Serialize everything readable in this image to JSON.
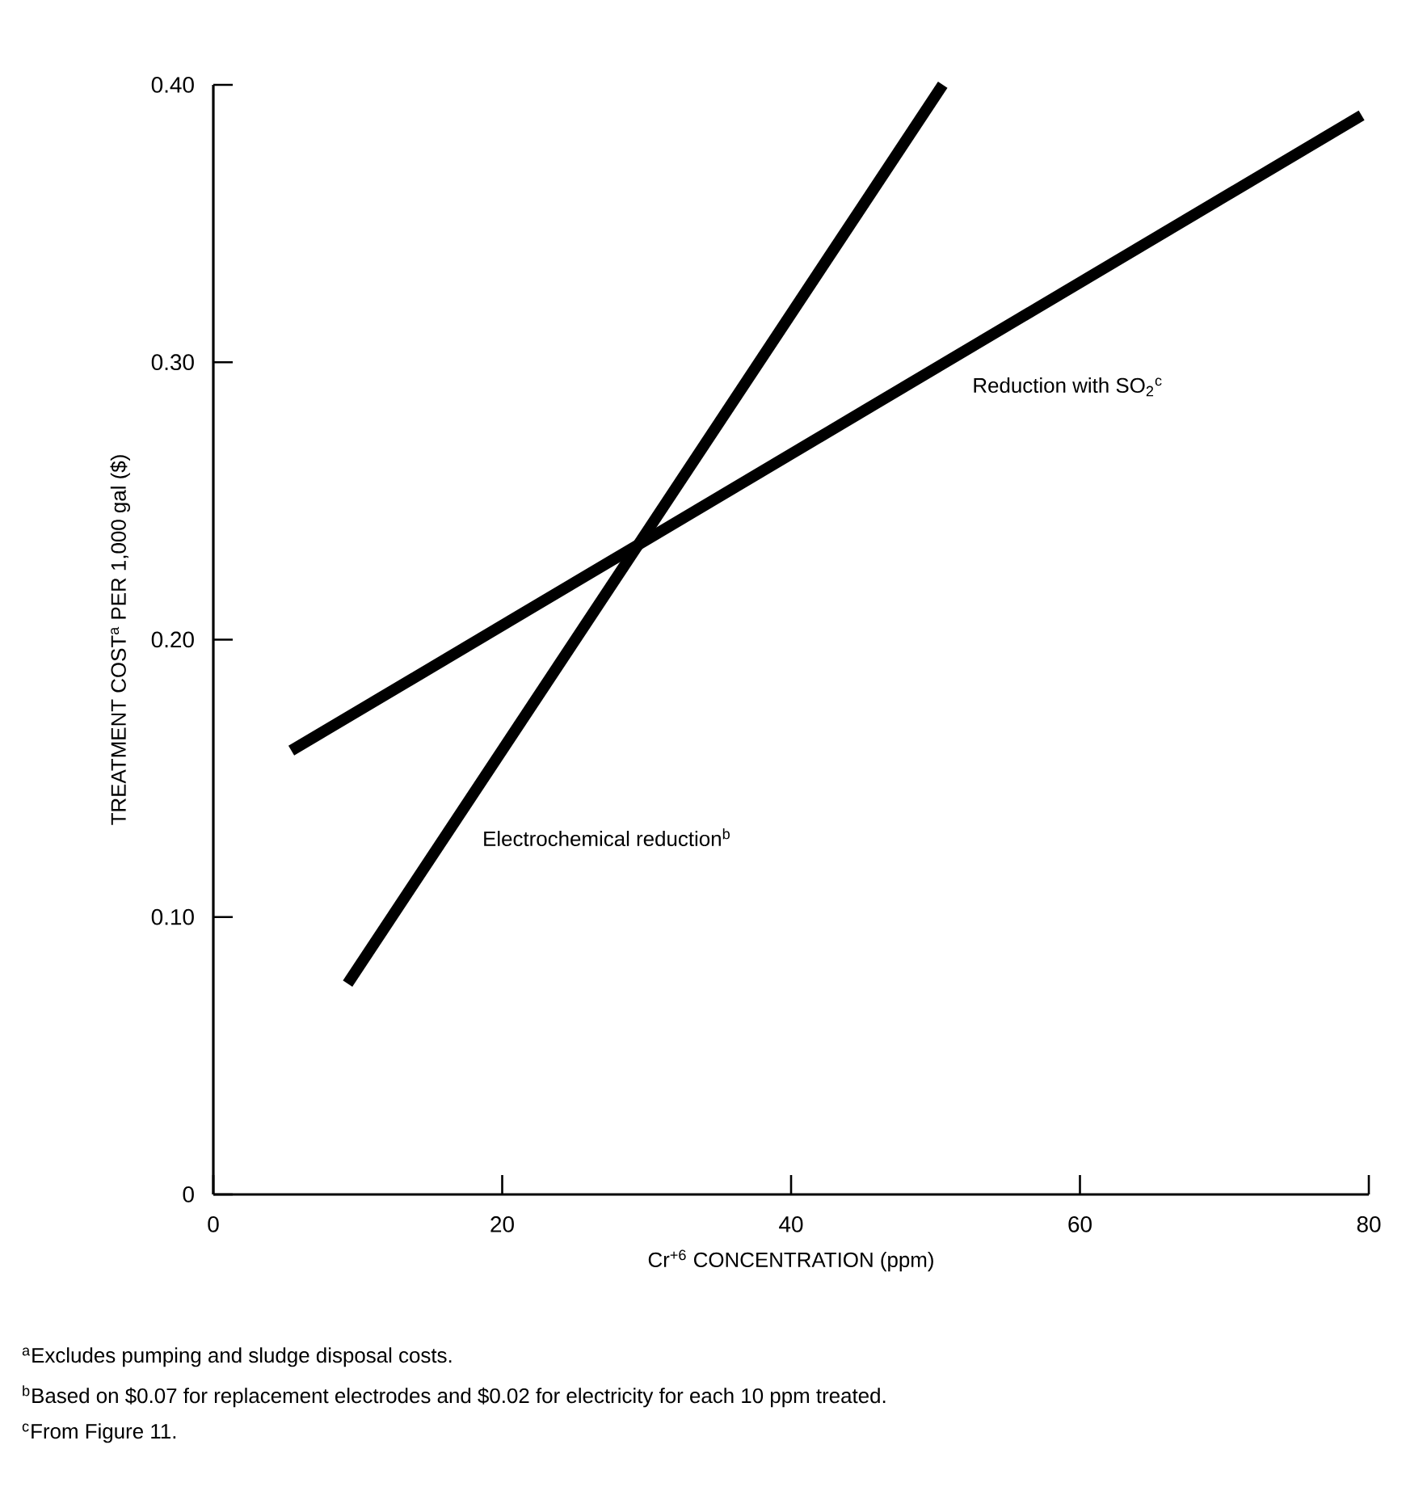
{
  "chart_data": {
    "type": "line",
    "xlabel": "Cr$^{+6}$ CONCENTRATION (ppm)",
    "ylabel": "TREATMENT COST$^{a}$ PER 1,000 gal ($)",
    "xlim": [
      0,
      80
    ],
    "ylim": [
      0,
      0.4
    ],
    "xticks": [
      0,
      20,
      40,
      60,
      80
    ],
    "yticks": [
      {
        "value": 0,
        "label": "0"
      },
      {
        "value": 0.1,
        "label": "0.10"
      },
      {
        "value": 0.2,
        "label": "0.20"
      },
      {
        "value": 0.3,
        "label": "0.30"
      },
      {
        "value": 0.4,
        "label": "0.40"
      }
    ],
    "series": [
      {
        "name": "Electrochemical reduction$^{b}$",
        "color": "#000000",
        "x": [
          9.3,
          50.5
        ],
        "values": [
          0.076,
          0.4
        ]
      },
      {
        "name": "Reduction with SO$_{2}$$^{c}$",
        "color": "#000000",
        "x": [
          5.4,
          79.5
        ],
        "values": [
          0.16,
          0.389
        ]
      }
    ],
    "grid": false,
    "legend": false,
    "marker": "none",
    "line_style": "solid",
    "annotations": [
      "$^{a}$Excludes pumping and sludge disposal costs.",
      "$^{b}$Based on $0.07 for replacement electrodes and $0.02 for electricity for each 10 ppm treated.",
      "$^{c}$From Figure 11."
    ]
  }
}
